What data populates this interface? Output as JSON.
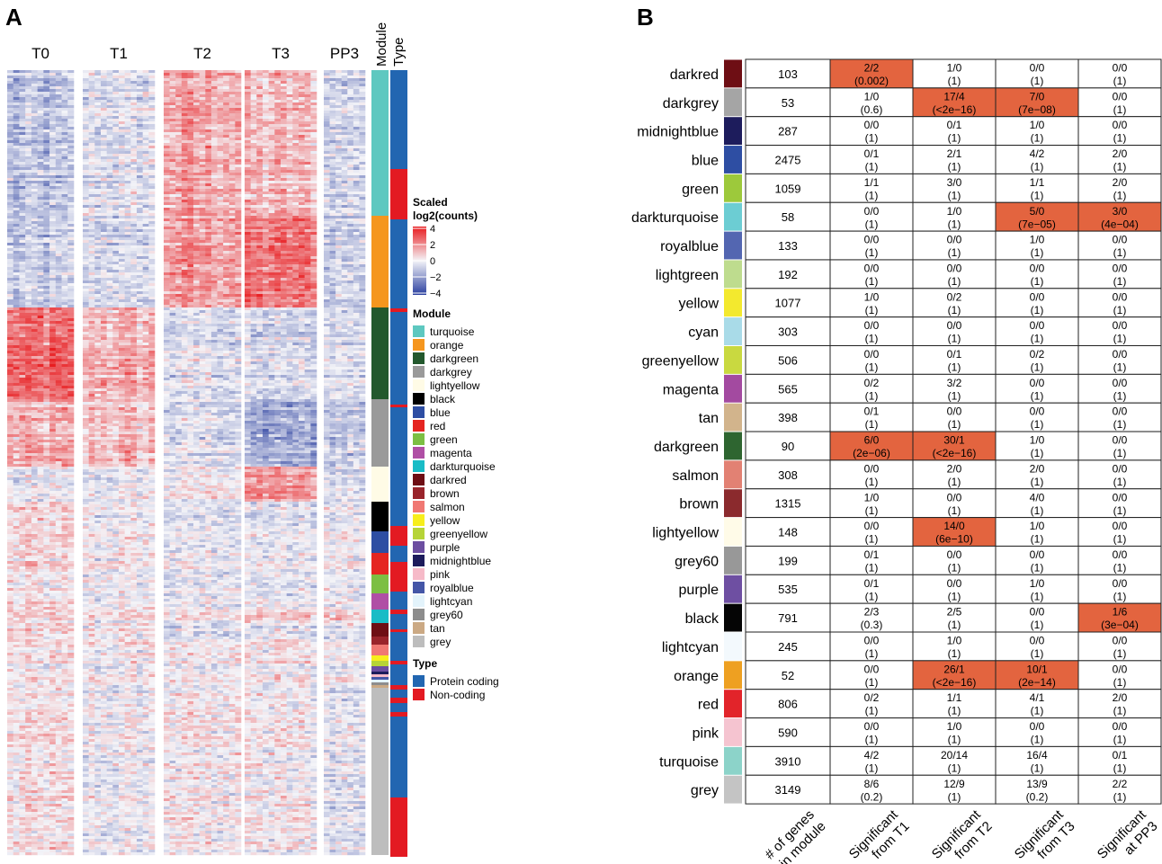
{
  "colors": {
    "low": "#2a3f9f",
    "mid": "#f4f4f8",
    "high": "#e8191c",
    "protein_coding": "#2266b1",
    "non_coding": "#e31a22",
    "significant": "#e3643f",
    "grid": "#222222"
  },
  "panel_a": {
    "label": "A",
    "column_groups": [
      "T0",
      "T1",
      "T2",
      "T3",
      "PP3"
    ],
    "module_bar_label": "Module",
    "type_bar_label": "Type"
  },
  "legend": {
    "scale_title": "Scaled\nlog2(counts)",
    "scale_ticks": [
      "4",
      "2",
      "0",
      "-2",
      "-4"
    ],
    "module_title": "Module",
    "modules": [
      {
        "name": "turquoise",
        "color": "#5ec8c0"
      },
      {
        "name": "orange",
        "color": "#f5961e"
      },
      {
        "name": "darkgreen",
        "color": "#23582d"
      },
      {
        "name": "darkgrey",
        "color": "#9a9a9a"
      },
      {
        "name": "lightyellow",
        "color": "#fffbe6"
      },
      {
        "name": "black",
        "color": "#000000"
      },
      {
        "name": "blue",
        "color": "#2e4ea3"
      },
      {
        "name": "red",
        "color": "#e52521"
      },
      {
        "name": "green",
        "color": "#7cbf43"
      },
      {
        "name": "magenta",
        "color": "#b04fa5"
      },
      {
        "name": "darkturquoise",
        "color": "#19bcc6"
      },
      {
        "name": "darkred",
        "color": "#6e0e14"
      },
      {
        "name": "brown",
        "color": "#99242b"
      },
      {
        "name": "salmon",
        "color": "#f07873"
      },
      {
        "name": "yellow",
        "color": "#f7ee1c"
      },
      {
        "name": "greenyellow",
        "color": "#b6d437"
      },
      {
        "name": "purple",
        "color": "#6c4ea1"
      },
      {
        "name": "midnightblue",
        "color": "#1d1c5c"
      },
      {
        "name": "pink",
        "color": "#f6bac8"
      },
      {
        "name": "royalblue",
        "color": "#4456a7"
      },
      {
        "name": "lightcyan",
        "color": "#e3f3fb"
      },
      {
        "name": "grey60",
        "color": "#8d8d8d"
      },
      {
        "name": "tan",
        "color": "#cba984"
      },
      {
        "name": "grey",
        "color": "#bdbdbd"
      }
    ],
    "type_title": "Type",
    "types": [
      {
        "name": "Protein coding",
        "color": "#2266b1"
      },
      {
        "name": "Non-coding",
        "color": "#e31a22"
      }
    ]
  },
  "chart_data": [
    {
      "type": "heatmap",
      "title": "A",
      "column_groups": [
        "T0",
        "T1",
        "T2",
        "T3",
        "PP3"
      ],
      "value_label": "Scaled log2(counts)",
      "value_range": [
        -4,
        4
      ],
      "row_module_order": [
        "turquoise",
        "orange",
        "darkgreen",
        "darkgrey",
        "lightyellow",
        "black",
        "blue",
        "red",
        "green",
        "magenta",
        "darkturquoise",
        "darkred",
        "brown",
        "salmon",
        "yellow",
        "greenyellow",
        "purple",
        "midnightblue",
        "pink",
        "royalblue",
        "lightcyan",
        "grey60",
        "tan",
        "grey"
      ],
      "module_block_fractions": [
        0.186,
        0.117,
        0.117,
        0.085,
        0.045,
        0.036,
        0.029,
        0.027,
        0.023,
        0.021,
        0.019,
        0.015,
        0.013,
        0.013,
        0.008,
        0.007,
        0.006,
        0.004,
        0.003,
        0.003,
        0.003,
        0.003,
        0.003,
        0.216
      ],
      "group_means": {
        "turquoise": [
          -1.2,
          -0.4,
          1.4,
          1.0,
          -0.6
        ],
        "orange": [
          -1.0,
          -0.6,
          1.6,
          2.2,
          -0.8
        ],
        "darkgreen": [
          2.4,
          1.2,
          -0.4,
          -0.6,
          -0.4
        ],
        "darkgrey": [
          1.2,
          1.0,
          -0.4,
          -1.6,
          -0.8
        ],
        "lightyellow": [
          -0.2,
          -0.2,
          0.2,
          1.6,
          -0.4
        ],
        "black": [
          0.6,
          0.1,
          -0.3,
          -0.3,
          0.0
        ],
        "blue": [
          0.5,
          0.0,
          -0.3,
          -0.2,
          0.1
        ],
        "red": [
          0.4,
          0.1,
          -0.2,
          -0.2,
          -0.1
        ],
        "green": [
          0.3,
          0.0,
          -0.1,
          -0.2,
          0.0
        ],
        "magenta": [
          0.4,
          0.0,
          -0.2,
          -0.1,
          -0.1
        ],
        "darkturquoise": [
          0.2,
          0.1,
          0.0,
          0.5,
          0.6
        ],
        "darkred": [
          0.5,
          0.3,
          -0.3,
          -0.3,
          -0.1
        ],
        "brown": [
          0.3,
          0.1,
          -0.2,
          0.2,
          -0.1
        ],
        "salmon": [
          0.2,
          0.0,
          0.1,
          0.1,
          -0.1
        ],
        "yellow": [
          0.2,
          0.0,
          0.0,
          0.0,
          0.0
        ],
        "greenyellow": [
          0.1,
          0.0,
          0.0,
          0.1,
          0.0
        ],
        "purple": [
          0.1,
          0.0,
          0.1,
          0.0,
          -0.1
        ],
        "midnightblue": [
          0.1,
          0.0,
          0.0,
          0.1,
          0.0
        ],
        "pink": [
          0.0,
          0.0,
          0.1,
          0.0,
          0.0
        ],
        "royalblue": [
          0.0,
          0.1,
          0.0,
          0.0,
          0.0
        ],
        "lightcyan": [
          0.0,
          0.0,
          0.0,
          0.1,
          0.0
        ],
        "grey60": [
          0.0,
          0.0,
          0.0,
          0.0,
          0.1
        ],
        "tan": [
          0.1,
          0.0,
          0.0,
          0.0,
          0.0
        ],
        "grey": [
          0.3,
          -0.1,
          0.2,
          0.1,
          -0.3
        ]
      }
    },
    {
      "type": "table",
      "title": "B",
      "columns": [
        "# of genes\nin module",
        "Significant\nfrom T1",
        "Significant\nfrom T2",
        "Significant\nfrom T3",
        "Significant\nat PP3"
      ],
      "rows": [
        {
          "module": "darkred",
          "color": "#6e0e14",
          "n": "103",
          "cells": [
            [
              "2/2",
              "(0.002)",
              true
            ],
            [
              "1/0",
              "(1)",
              false
            ],
            [
              "0/0",
              "(1)",
              false
            ],
            [
              "0/0",
              "(1)",
              false
            ]
          ]
        },
        {
          "module": "darkgrey",
          "color": "#a5a5a5",
          "n": "53",
          "cells": [
            [
              "1/0",
              "(0.6)",
              false
            ],
            [
              "17/4",
              "(<2e−16)",
              true
            ],
            [
              "7/0",
              "(7e−08)",
              true
            ],
            [
              "0/0",
              "(1)",
              false
            ]
          ]
        },
        {
          "module": "midnightblue",
          "color": "#1d1c5c",
          "n": "287",
          "cells": [
            [
              "0/0",
              "(1)",
              false
            ],
            [
              "0/1",
              "(1)",
              false
            ],
            [
              "1/0",
              "(1)",
              false
            ],
            [
              "0/0",
              "(1)",
              false
            ]
          ]
        },
        {
          "module": "blue",
          "color": "#2e4ea3",
          "n": "2475",
          "cells": [
            [
              "0/1",
              "(1)",
              false
            ],
            [
              "2/1",
              "(1)",
              false
            ],
            [
              "4/2",
              "(1)",
              false
            ],
            [
              "2/0",
              "(1)",
              false
            ]
          ]
        },
        {
          "module": "green",
          "color": "#9dc93b",
          "n": "1059",
          "cells": [
            [
              "1/1",
              "(1)",
              false
            ],
            [
              "3/0",
              "(1)",
              false
            ],
            [
              "1/1",
              "(1)",
              false
            ],
            [
              "2/0",
              "(1)",
              false
            ]
          ]
        },
        {
          "module": "darkturquoise",
          "color": "#6ccdd3",
          "n": "58",
          "cells": [
            [
              "0/0",
              "(1)",
              false
            ],
            [
              "1/0",
              "(1)",
              false
            ],
            [
              "5/0",
              "(7e−05)",
              true
            ],
            [
              "3/0",
              "(4e−04)",
              true
            ]
          ]
        },
        {
          "module": "royalblue",
          "color": "#5366b1",
          "n": "133",
          "cells": [
            [
              "0/0",
              "(1)",
              false
            ],
            [
              "0/0",
              "(1)",
              false
            ],
            [
              "1/0",
              "(1)",
              false
            ],
            [
              "0/0",
              "(1)",
              false
            ]
          ]
        },
        {
          "module": "lightgreen",
          "color": "#bedc8e",
          "n": "192",
          "cells": [
            [
              "0/0",
              "(1)",
              false
            ],
            [
              "0/0",
              "(1)",
              false
            ],
            [
              "0/0",
              "(1)",
              false
            ],
            [
              "0/0",
              "(1)",
              false
            ]
          ]
        },
        {
          "module": "yellow",
          "color": "#f3e92e",
          "n": "1077",
          "cells": [
            [
              "1/0",
              "(1)",
              false
            ],
            [
              "0/2",
              "(1)",
              false
            ],
            [
              "0/0",
              "(1)",
              false
            ],
            [
              "0/0",
              "(1)",
              false
            ]
          ]
        },
        {
          "module": "cyan",
          "color": "#a9dbe8",
          "n": "303",
          "cells": [
            [
              "0/0",
              "(1)",
              false
            ],
            [
              "0/0",
              "(1)",
              false
            ],
            [
              "0/0",
              "(1)",
              false
            ],
            [
              "0/0",
              "(1)",
              false
            ]
          ]
        },
        {
          "module": "greenyellow",
          "color": "#c9d940",
          "n": "506",
          "cells": [
            [
              "0/0",
              "(1)",
              false
            ],
            [
              "0/1",
              "(1)",
              false
            ],
            [
              "0/2",
              "(1)",
              false
            ],
            [
              "0/0",
              "(1)",
              false
            ]
          ]
        },
        {
          "module": "magenta",
          "color": "#a34aa0",
          "n": "565",
          "cells": [
            [
              "0/2",
              "(1)",
              false
            ],
            [
              "3/2",
              "(1)",
              false
            ],
            [
              "0/0",
              "(1)",
              false
            ],
            [
              "0/0",
              "(1)",
              false
            ]
          ]
        },
        {
          "module": "tan",
          "color": "#d2b48c",
          "n": "398",
          "cells": [
            [
              "0/1",
              "(1)",
              false
            ],
            [
              "0/0",
              "(1)",
              false
            ],
            [
              "0/0",
              "(1)",
              false
            ],
            [
              "0/0",
              "(1)",
              false
            ]
          ]
        },
        {
          "module": "darkgreen",
          "color": "#2e6530",
          "n": "90",
          "cells": [
            [
              "6/0",
              "(2e−06)",
              true
            ],
            [
              "30/1",
              "(<2e−16)",
              true
            ],
            [
              "1/0",
              "(1)",
              false
            ],
            [
              "0/0",
              "(1)",
              false
            ]
          ]
        },
        {
          "module": "salmon",
          "color": "#e28173",
          "n": "308",
          "cells": [
            [
              "0/0",
              "(1)",
              false
            ],
            [
              "2/0",
              "(1)",
              false
            ],
            [
              "2/0",
              "(1)",
              false
            ],
            [
              "0/0",
              "(1)",
              false
            ]
          ]
        },
        {
          "module": "brown",
          "color": "#8b2a2d",
          "n": "1315",
          "cells": [
            [
              "1/0",
              "(1)",
              false
            ],
            [
              "0/0",
              "(1)",
              false
            ],
            [
              "4/0",
              "(1)",
              false
            ],
            [
              "0/0",
              "(1)",
              false
            ]
          ]
        },
        {
          "module": "lightyellow",
          "color": "#fffbe8",
          "n": "148",
          "cells": [
            [
              "0/0",
              "(1)",
              false
            ],
            [
              "14/0",
              "(6e−10)",
              true
            ],
            [
              "1/0",
              "(1)",
              false
            ],
            [
              "0/0",
              "(1)",
              false
            ]
          ]
        },
        {
          "module": "grey60",
          "color": "#989898",
          "n": "199",
          "cells": [
            [
              "0/1",
              "(1)",
              false
            ],
            [
              "0/0",
              "(1)",
              false
            ],
            [
              "0/0",
              "(1)",
              false
            ],
            [
              "0/0",
              "(1)",
              false
            ]
          ]
        },
        {
          "module": "purple",
          "color": "#6e4fa2",
          "n": "535",
          "cells": [
            [
              "0/1",
              "(1)",
              false
            ],
            [
              "0/0",
              "(1)",
              false
            ],
            [
              "1/0",
              "(1)",
              false
            ],
            [
              "0/0",
              "(1)",
              false
            ]
          ]
        },
        {
          "module": "black",
          "color": "#050505",
          "n": "791",
          "cells": [
            [
              "2/3",
              "(0.3)",
              false
            ],
            [
              "2/5",
              "(1)",
              false
            ],
            [
              "0/0",
              "(1)",
              false
            ],
            [
              "1/6",
              "(3e−04)",
              true
            ]
          ]
        },
        {
          "module": "lightcyan",
          "color": "#f3f9fd",
          "n": "245",
          "cells": [
            [
              "0/0",
              "(1)",
              false
            ],
            [
              "1/0",
              "(1)",
              false
            ],
            [
              "0/0",
              "(1)",
              false
            ],
            [
              "0/0",
              "(1)",
              false
            ]
          ]
        },
        {
          "module": "orange",
          "color": "#eea021",
          "n": "52",
          "cells": [
            [
              "0/0",
              "(1)",
              false
            ],
            [
              "26/1",
              "(<2e−16)",
              true
            ],
            [
              "10/1",
              "(2e−14)",
              true
            ],
            [
              "0/0",
              "(1)",
              false
            ]
          ]
        },
        {
          "module": "red",
          "color": "#e2242a",
          "n": "806",
          "cells": [
            [
              "0/2",
              "(1)",
              false
            ],
            [
              "1/1",
              "(1)",
              false
            ],
            [
              "4/1",
              "(1)",
              false
            ],
            [
              "2/0",
              "(1)",
              false
            ]
          ]
        },
        {
          "module": "pink",
          "color": "#f5c4d0",
          "n": "590",
          "cells": [
            [
              "0/0",
              "(1)",
              false
            ],
            [
              "1/0",
              "(1)",
              false
            ],
            [
              "0/0",
              "(1)",
              false
            ],
            [
              "0/0",
              "(1)",
              false
            ]
          ]
        },
        {
          "module": "turquoise",
          "color": "#8cd3c9",
          "n": "3910",
          "cells": [
            [
              "4/2",
              "(1)",
              false
            ],
            [
              "20/14",
              "(1)",
              false
            ],
            [
              "16/4",
              "(1)",
              false
            ],
            [
              "0/1",
              "(1)",
              false
            ]
          ]
        },
        {
          "module": "grey",
          "color": "#c4c4c4",
          "n": "3149",
          "cells": [
            [
              "8/6",
              "(0.2)",
              false
            ],
            [
              "12/9",
              "(1)",
              false
            ],
            [
              "13/9",
              "(0.2)",
              false
            ],
            [
              "2/2",
              "(1)",
              false
            ]
          ]
        }
      ]
    }
  ]
}
